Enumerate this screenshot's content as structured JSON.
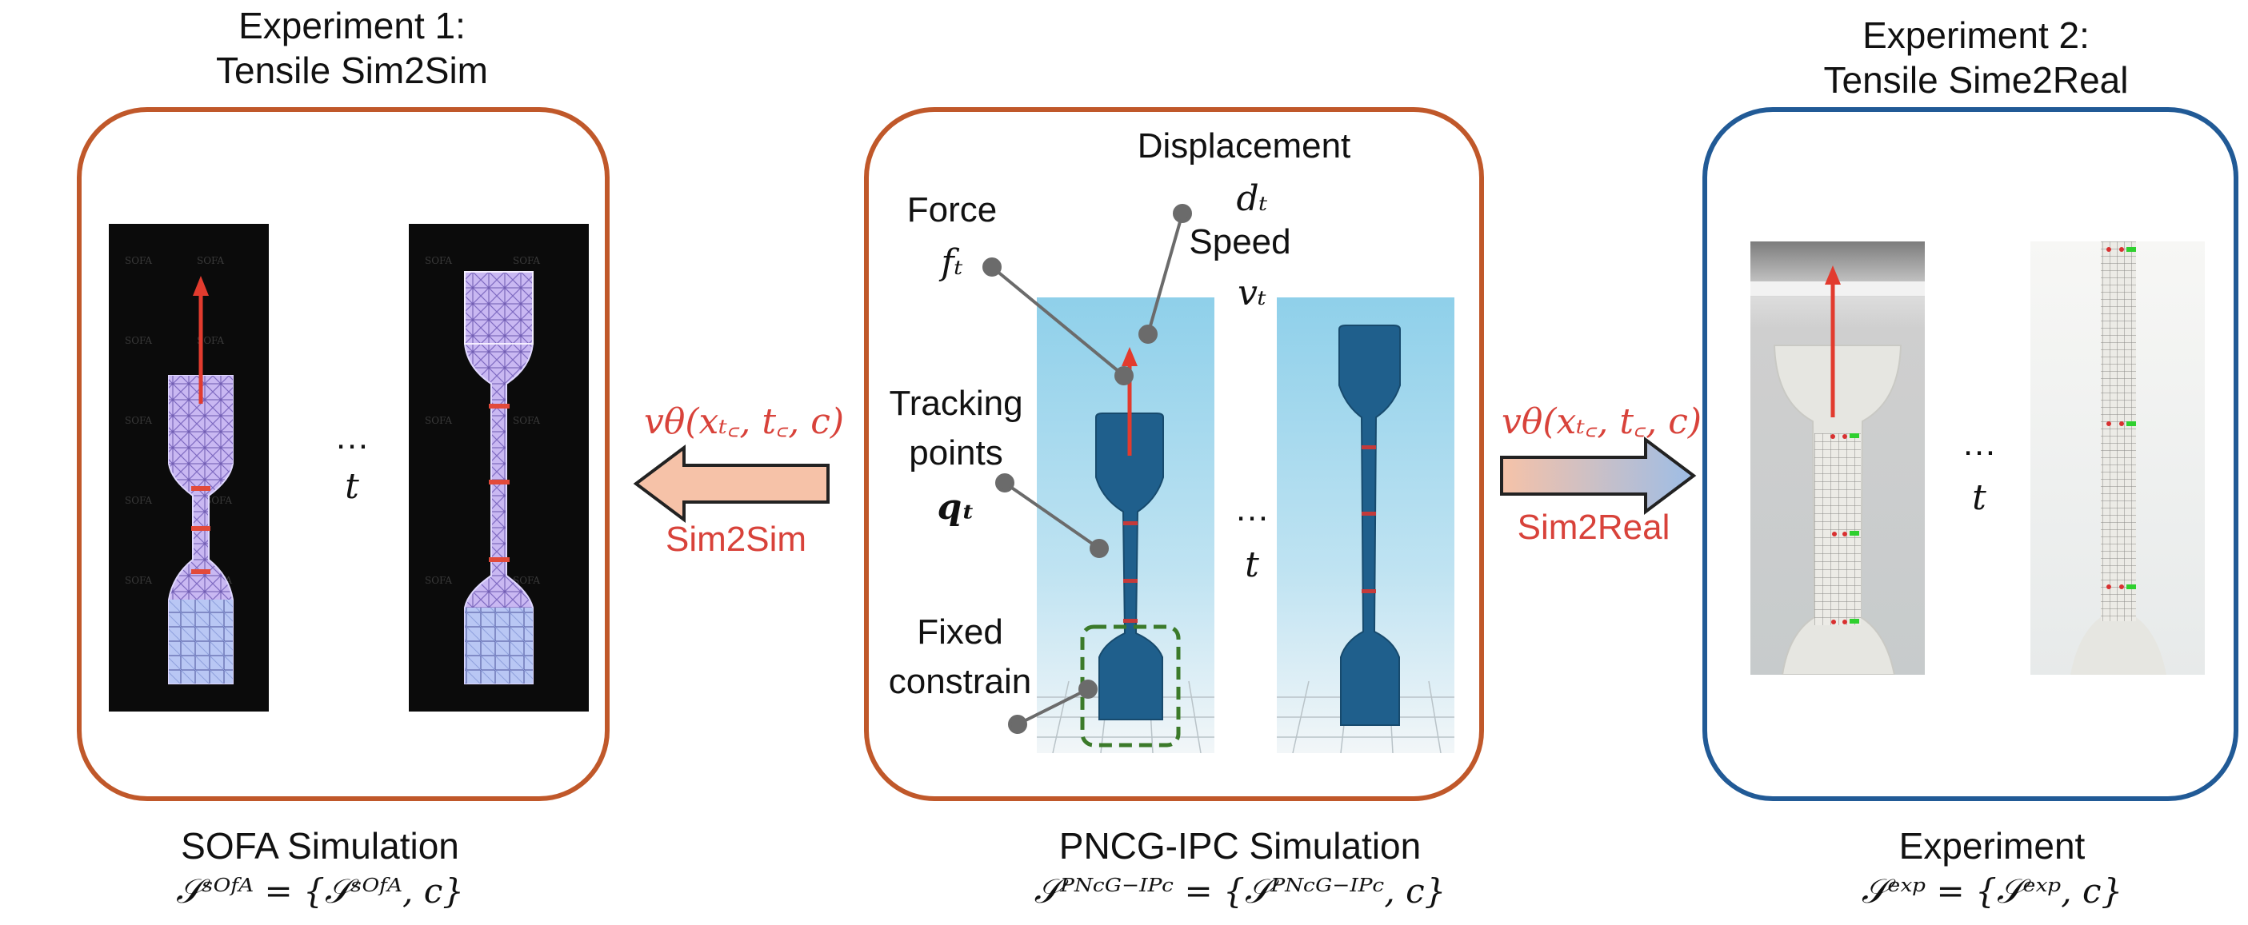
{
  "experiment1": {
    "title_line1": "Experiment 1:",
    "title_line2": "Tensile Sim2Sim",
    "caption": "SOFA Simulation",
    "formula": "𝒮ˢᴼᶠᴬ = {𝒮ˢᴼᶠᴬ, c}",
    "ellipsis": "…",
    "time_symbol": "t",
    "frame_watermark": "SOFA",
    "border_color": "#c0582a"
  },
  "center": {
    "labels": {
      "displacement": "Displacement",
      "displacement_symbol": "dₜ",
      "speed": "Speed",
      "speed_symbol": "vₜ",
      "force": "Force",
      "force_symbol": "fₜ",
      "tracking_line1": "Tracking",
      "tracking_line2": "points",
      "tracking_symbol": "qₜ",
      "fixed_line1": "Fixed",
      "fixed_line2": "constrain",
      "ellipsis": "…",
      "time_symbol": "t"
    },
    "caption": "PNCG-IPC Simulation",
    "formula": "𝒮ᴾᴺᶜᴳ⁻ᴵᴾᶜ = {𝒮ᴾᴺᶜᴳ⁻ᴵᴾᶜ, c}",
    "border_color": "#c0582a"
  },
  "experiment2": {
    "title_line1": "Experiment 2:",
    "title_line2": "Tensile Sime2Real",
    "caption": "Experiment",
    "formula": "𝒮ᵉˣᵖ = {𝒮ᵉˣᵖ, c}",
    "ellipsis": "…",
    "time_symbol": "t",
    "border_color": "#215a96"
  },
  "arrows": {
    "left_formula": "vθ(xₜ꜀, t꜀, c)",
    "left_label": "Sim2Sim",
    "right_formula": "vθ(xₜ꜀, t꜀, c)",
    "right_label": "Sim2Real",
    "label_color": "#d8423a"
  }
}
